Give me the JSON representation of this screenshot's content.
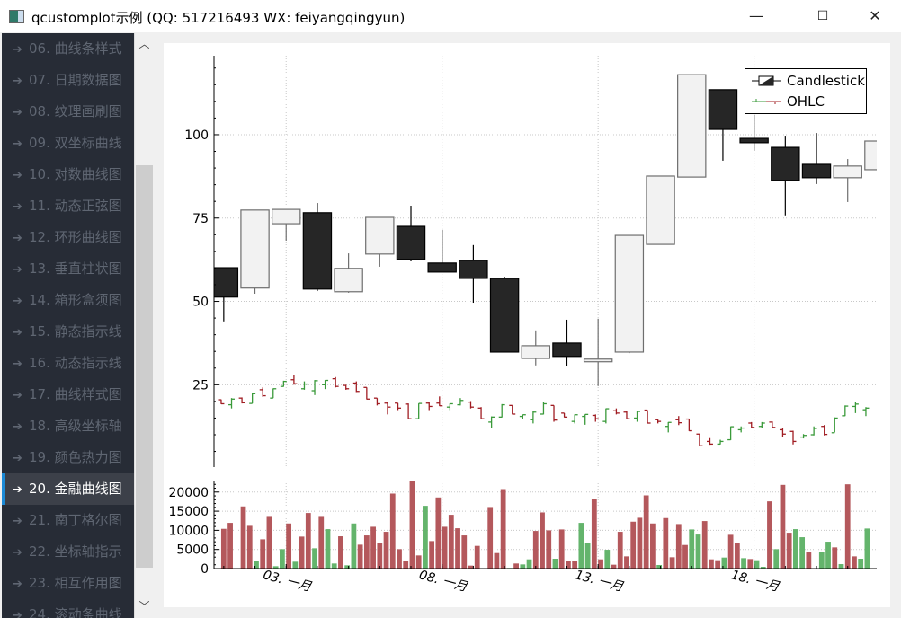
{
  "window": {
    "title": "qcustomplot示例 (QQ: 517216493 WX: feiyangqingyun)",
    "minimize": "—",
    "maximize": "☐",
    "close": "✕"
  },
  "sidebar": {
    "items": [
      {
        "label": "06. 曲线条样式"
      },
      {
        "label": "07. 日期数据图"
      },
      {
        "label": "08. 纹理画刷图"
      },
      {
        "label": "09. 双坐标曲线"
      },
      {
        "label": "10. 对数曲线图"
      },
      {
        "label": "11. 动态正弦图"
      },
      {
        "label": "12. 环形曲线图"
      },
      {
        "label": "13. 垂直柱状图"
      },
      {
        "label": "14. 箱形盒须图"
      },
      {
        "label": "15. 静态指示线"
      },
      {
        "label": "16. 动态指示线"
      },
      {
        "label": "17. 曲线样式图"
      },
      {
        "label": "18. 高级坐标轴"
      },
      {
        "label": "19. 颜色热力图"
      },
      {
        "label": "20. 金融曲线图"
      },
      {
        "label": "21. 南丁格尔图"
      },
      {
        "label": "22. 坐标轴指示"
      },
      {
        "label": "23. 相互作用图"
      },
      {
        "label": "24. 滚动条曲线"
      }
    ],
    "selected_index": 14,
    "arrow_icon": "arrow-right-icon"
  },
  "colors": {
    "accent": "#1b8ad6",
    "sidebar_bg": "#272c36",
    "candle_up": "#f2f2f2",
    "candle_down": "#262626",
    "ohlc_up": "#3a9a3a",
    "ohlc_down": "#a01c22",
    "volume_pos": "#64b46c",
    "volume_neg": "#b4585c"
  },
  "chart_data": [
    {
      "type": "candlestick",
      "legend": [
        {
          "label": "Candlestick"
        },
        {
          "label": "OHLC"
        }
      ],
      "legend_position": "top-right",
      "grid": true,
      "ylim": [
        0.3,
        123.7
      ],
      "xlim": [
        "12-31 16:30",
        "01-21 22:20"
      ],
      "yticks": [
        "25",
        "50",
        "75",
        "100"
      ],
      "candlestick": [
        [
          "01-01",
          60.1,
          60.1,
          44.0,
          51.3
        ],
        [
          "01-02",
          54.0,
          77.4,
          52.3,
          77.4
        ],
        [
          "01-03",
          73.3,
          77.6,
          68.2,
          77.6
        ],
        [
          "01-04",
          76.6,
          79.5,
          53.1,
          53.7
        ],
        [
          "01-05",
          52.9,
          64.4,
          52.6,
          59.9
        ],
        [
          "01-06",
          64.2,
          75.2,
          60.4,
          75.2
        ],
        [
          "01-07",
          72.5,
          78.7,
          62.0,
          62.6
        ],
        [
          "01-08",
          61.5,
          71.5,
          58.8,
          58.8
        ],
        [
          "01-09",
          62.3,
          66.9,
          49.6,
          56.9
        ],
        [
          "01-10",
          56.9,
          57.4,
          34.8,
          34.8
        ],
        [
          "01-11",
          32.9,
          41.3,
          30.8,
          36.7
        ],
        [
          "01-12",
          37.5,
          44.5,
          30.5,
          33.5
        ],
        [
          "01-13",
          31.9,
          44.8,
          24.6,
          32.7
        ],
        [
          "01-14",
          34.8,
          69.8,
          34.5,
          69.8
        ],
        [
          "01-15",
          67.1,
          87.6,
          67.0,
          87.6
        ],
        [
          "01-16",
          87.3,
          118.0,
          87.3,
          118.0
        ],
        [
          "01-17",
          113.5,
          113.5,
          92.2,
          101.6
        ],
        [
          "01-18",
          98.9,
          106.0,
          95.2,
          97.6
        ],
        [
          "01-19",
          96.2,
          99.7,
          75.8,
          86.3
        ],
        [
          "01-20",
          91.1,
          100.5,
          85.2,
          87.1
        ],
        [
          "01-21",
          87.1,
          92.7,
          79.8,
          90.6
        ],
        [
          "01-22",
          89.5,
          98.1,
          89.5,
          98.1
        ]
      ],
      "ohlc": [
        [
          "12-31 22:00",
          20.5,
          20.6,
          19.2,
          19.3
        ],
        [
          "01-01 06:00",
          19.0,
          21.0,
          17.9,
          20.7
        ],
        [
          "01-01 14:00",
          21.0,
          21.2,
          19.4,
          19.6
        ],
        [
          "01-01 22:00",
          19.4,
          22.4,
          19.4,
          22.3
        ],
        [
          "01-02 06:00",
          23.5,
          24.2,
          21.4,
          21.7
        ],
        [
          "01-02 14:00",
          21.0,
          23.9,
          21.0,
          23.8
        ],
        [
          "01-02 22:00",
          24.5,
          26.2,
          24.4,
          26.0
        ],
        [
          "01-03 06:00",
          26.5,
          28.0,
          25.0,
          25.3
        ],
        [
          "01-03 14:00",
          23.8,
          26.0,
          23.5,
          25.2
        ],
        [
          "01-03 22:00",
          23.2,
          26.4,
          21.9,
          26.2
        ],
        [
          "01-04 06:00",
          25.0,
          26.4,
          23.7,
          26.3
        ],
        [
          "01-04 14:00",
          26.8,
          27.3,
          24.2,
          24.5
        ],
        [
          "01-04 22:00",
          24.8,
          25.0,
          23.5,
          23.8
        ],
        [
          "01-05 06:00",
          25.5,
          26.0,
          22.8,
          23.0
        ],
        [
          "01-05 14:00",
          24.2,
          24.2,
          20.6,
          20.7
        ],
        [
          "01-05 22:00",
          21.0,
          21.0,
          18.8,
          19.3
        ],
        [
          "01-06 06:00",
          19.5,
          19.7,
          16.1,
          18.3
        ],
        [
          "01-06 14:00",
          19.5,
          19.5,
          17.4,
          18.0
        ],
        [
          "01-06 22:00",
          19.2,
          19.4,
          14.7,
          14.8
        ],
        [
          "01-07 06:00",
          14.8,
          19.4,
          14.7,
          19.4
        ],
        [
          "01-07 14:00",
          19.5,
          19.7,
          17.4,
          18.5
        ],
        [
          "01-07 22:00",
          19.5,
          21.5,
          18.6,
          18.7
        ],
        [
          "01-08 06:00",
          18.3,
          19.4,
          17.4,
          19.3
        ],
        [
          "01-08 14:00",
          19.0,
          21.0,
          18.8,
          20.3
        ],
        [
          "01-08 22:00",
          19.8,
          20.1,
          17.9,
          18.3
        ],
        [
          "01-09 06:00",
          18.0,
          18.3,
          14.7,
          14.8
        ],
        [
          "01-09 14:00",
          13.8,
          15.5,
          12.0,
          15.3
        ],
        [
          "01-09 22:00",
          15.3,
          19.2,
          15.2,
          19.0
        ],
        [
          "01-10 06:00",
          18.8,
          18.8,
          16.1,
          16.2
        ],
        [
          "01-10 14:00",
          15.5,
          16.0,
          14.7,
          16.0
        ],
        [
          "01-10 22:00",
          14.5,
          17.0,
          13.4,
          16.8
        ],
        [
          "01-11 06:00",
          16.2,
          19.7,
          16.1,
          19.3
        ],
        [
          "01-11 14:00",
          18.8,
          18.8,
          13.9,
          14.4
        ],
        [
          "01-11 22:00",
          16.5,
          16.5,
          15.2,
          15.3
        ],
        [
          "01-12 06:00",
          14.0,
          16.1,
          13.4,
          16.0
        ],
        [
          "01-12 14:00",
          15.5,
          16.1,
          13.0,
          16.1
        ],
        [
          "01-12 22:00",
          15.8,
          16.1,
          13.9,
          14.8
        ],
        [
          "01-13 06:00",
          14.0,
          17.9,
          13.4,
          17.8
        ],
        [
          "01-13 14:00",
          17.2,
          17.9,
          16.1,
          16.5
        ],
        [
          "01-13 22:00",
          16.8,
          17.0,
          14.7,
          14.8
        ],
        [
          "01-14 06:00",
          15.0,
          17.0,
          13.9,
          17.0
        ],
        [
          "01-14 14:00",
          17.4,
          17.4,
          13.4,
          13.5
        ],
        [
          "01-14 22:00",
          14.5,
          14.7,
          13.4,
          14.0
        ],
        [
          "01-15 06:00",
          12.5,
          13.8,
          10.7,
          13.7
        ],
        [
          "01-15 14:00",
          14.5,
          15.6,
          12.9,
          13.6
        ],
        [
          "01-15 22:00",
          14.7,
          14.7,
          11.1,
          11.2
        ],
        [
          "01-16 06:00",
          10.2,
          10.2,
          6.6,
          6.7
        ],
        [
          "01-16 14:00",
          8.0,
          9.0,
          7.0,
          7.2
        ],
        [
          "01-16 22:00",
          7.2,
          8.5,
          7.1,
          8.0
        ],
        [
          "01-17 06:00",
          8.5,
          12.5,
          8.4,
          12.4
        ],
        [
          "01-17 14:00",
          11.5,
          12.5,
          10.7,
          12.0
        ],
        [
          "01-17 22:00",
          13.5,
          13.8,
          12.0,
          12.2
        ],
        [
          "01-18 06:00",
          12.5,
          13.8,
          12.0,
          13.5
        ],
        [
          "01-18 14:00",
          13.8,
          14.0,
          12.0,
          12.2
        ],
        [
          "01-18 22:00",
          11.5,
          12.0,
          9.3,
          10.2
        ],
        [
          "01-19 06:00",
          11.0,
          11.2,
          7.1,
          8.0
        ],
        [
          "01-19 14:00",
          9.3,
          10.2,
          8.9,
          9.8
        ],
        [
          "01-19 22:00",
          10.0,
          12.5,
          9.8,
          11.9
        ],
        [
          "01-20 06:00",
          12.5,
          12.9,
          9.8,
          10.1
        ],
        [
          "01-20 14:00",
          10.6,
          15.2,
          10.7,
          15.0
        ],
        [
          "01-20 22:00",
          15.7,
          18.8,
          15.6,
          18.6
        ],
        [
          "01-21 06:00",
          18.5,
          19.7,
          16.5,
          19.2
        ],
        [
          "01-21 14:00",
          17.5,
          18.3,
          15.6,
          18.0
        ]
      ]
    },
    {
      "type": "bar",
      "ylim": [
        0,
        23000
      ],
      "yticks": [
        "0",
        "5000",
        "10000",
        "15000",
        "20000"
      ],
      "xticks": [
        [
          "01-03",
          "03. 一月"
        ],
        [
          "01-08",
          "08. 一月"
        ],
        [
          "01-13",
          "13. 一月"
        ],
        [
          "01-18",
          "18. 一月"
        ]
      ],
      "volume": [
        [
          "01-01 00:00",
          10390,
          "neg"
        ],
        [
          "01-01 05:00",
          11950,
          "neg"
        ],
        [
          "01-01 10:00",
          100,
          "neg"
        ],
        [
          "01-01 15:00",
          16250,
          "neg"
        ],
        [
          "01-01 20:00",
          11170,
          "neg"
        ],
        [
          "01-02 01:00",
          1950,
          "pos"
        ],
        [
          "01-02 06:00",
          7650,
          "neg"
        ],
        [
          "01-02 11:00",
          13510,
          "neg"
        ],
        [
          "01-02 16:00",
          620,
          "pos"
        ],
        [
          "01-02 21:00",
          5080,
          "pos"
        ],
        [
          "01-03 02:00",
          11790,
          "neg"
        ],
        [
          "01-03 07:00",
          1800,
          "pos"
        ],
        [
          "01-03 12:00",
          8360,
          "neg"
        ],
        [
          "01-03 17:00",
          14530,
          "neg"
        ],
        [
          "01-03 22:00",
          5310,
          "pos"
        ],
        [
          "01-04 03:00",
          13510,
          "neg"
        ],
        [
          "01-04 08:00",
          10310,
          "pos"
        ],
        [
          "01-04 13:00",
          1330,
          "pos"
        ],
        [
          "01-04 18:00",
          8440,
          "neg"
        ],
        [
          "01-04 23:00",
          860,
          "pos"
        ],
        [
          "01-05 04:00",
          11790,
          "pos"
        ],
        [
          "01-05 09:00",
          6250,
          "neg"
        ],
        [
          "01-05 14:00",
          8670,
          "neg"
        ],
        [
          "01-05 19:00",
          10930,
          "neg"
        ],
        [
          "01-06 00:00",
          6800,
          "neg"
        ],
        [
          "01-06 05:00",
          9610,
          "neg"
        ],
        [
          "01-06 10:00",
          19600,
          "neg"
        ],
        [
          "01-06 15:00",
          5080,
          "neg"
        ],
        [
          "01-06 20:00",
          2110,
          "neg"
        ],
        [
          "01-07 01:00",
          23270,
          "neg"
        ],
        [
          "01-07 06:00",
          3440,
          "neg"
        ],
        [
          "01-07 11:00",
          16400,
          "pos"
        ],
        [
          "01-07 16:00",
          7190,
          "neg"
        ],
        [
          "01-07 21:00",
          18590,
          "neg"
        ],
        [
          "01-08 02:00",
          10930,
          "neg"
        ],
        [
          "01-08 07:00",
          14060,
          "neg"
        ],
        [
          "01-08 12:00",
          10540,
          "neg"
        ],
        [
          "01-08 17:00",
          8670,
          "neg"
        ],
        [
          "01-08 22:00",
          780,
          "neg"
        ],
        [
          "01-09 03:00",
          5940,
          "neg"
        ],
        [
          "01-09 08:00",
          80,
          "pos"
        ],
        [
          "01-09 13:00",
          16090,
          "neg"
        ],
        [
          "01-09 18:00",
          4060,
          "neg"
        ],
        [
          "01-09 23:00",
          20770,
          "neg"
        ],
        [
          "01-10 04:00",
          150,
          "pos"
        ],
        [
          "01-10 09:00",
          1330,
          "neg"
        ],
        [
          "01-10 14:00",
          1090,
          "pos"
        ],
        [
          "01-10 19:00",
          2420,
          "pos"
        ],
        [
          "01-11 00:00",
          9840,
          "neg"
        ],
        [
          "01-11 05:00",
          14680,
          "neg"
        ],
        [
          "01-11 10:00",
          10000,
          "neg"
        ],
        [
          "01-11 15:00",
          2580,
          "pos"
        ],
        [
          "01-11 20:00",
          10230,
          "neg"
        ],
        [
          "01-12 01:00",
          2030,
          "neg"
        ],
        [
          "01-12 06:00",
          1950,
          "neg"
        ],
        [
          "01-12 11:00",
          11950,
          "pos"
        ],
        [
          "01-12 16:00",
          6640,
          "pos"
        ],
        [
          "01-12 21:00",
          18200,
          "neg"
        ],
        [
          "01-13 02:00",
          2420,
          "neg"
        ],
        [
          "01-13 07:00",
          4920,
          "pos"
        ],
        [
          "01-13 12:00",
          1020,
          "neg"
        ],
        [
          "01-13 17:00",
          9610,
          "neg"
        ],
        [
          "01-13 22:00",
          3200,
          "neg"
        ],
        [
          "01-14 03:00",
          12260,
          "neg"
        ],
        [
          "01-14 08:00",
          13280,
          "neg"
        ],
        [
          "01-14 13:00",
          19130,
          "neg"
        ],
        [
          "01-14 18:00",
          11790,
          "neg"
        ],
        [
          "01-14 23:00",
          940,
          "pos"
        ],
        [
          "01-15 04:00",
          13200,
          "neg"
        ],
        [
          "01-15 09:00",
          2970,
          "neg"
        ],
        [
          "01-15 14:00",
          11640,
          "neg"
        ],
        [
          "01-15 19:00",
          6170,
          "neg"
        ],
        [
          "01-16 00:00",
          10230,
          "pos"
        ],
        [
          "01-16 05:00",
          8900,
          "pos"
        ],
        [
          "01-16 10:00",
          12420,
          "neg"
        ],
        [
          "01-16 15:00",
          2420,
          "neg"
        ],
        [
          "01-16 20:00",
          2190,
          "neg"
        ],
        [
          "01-17 01:00",
          2890,
          "pos"
        ],
        [
          "01-17 06:00",
          8830,
          "neg"
        ],
        [
          "01-17 11:00",
          6640,
          "neg"
        ],
        [
          "01-17 16:00",
          2730,
          "pos"
        ],
        [
          "01-17 21:00",
          2500,
          "neg"
        ],
        [
          "01-18 02:00",
          2190,
          "pos"
        ],
        [
          "01-18 07:00",
          470,
          "pos"
        ],
        [
          "01-18 12:00",
          17570,
          "neg"
        ],
        [
          "01-18 17:00",
          5080,
          "pos"
        ],
        [
          "01-18 22:00",
          21870,
          "neg"
        ],
        [
          "01-19 03:00",
          9370,
          "neg"
        ],
        [
          "01-19 08:00",
          10310,
          "pos"
        ],
        [
          "01-19 13:00",
          8200,
          "pos"
        ],
        [
          "01-19 18:00",
          4220,
          "neg"
        ],
        [
          "01-19 23:00",
          50,
          "pos"
        ],
        [
          "01-20 04:00",
          4300,
          "pos"
        ],
        [
          "01-20 09:00",
          7030,
          "pos"
        ],
        [
          "01-20 14:00",
          5550,
          "neg"
        ],
        [
          "01-20 19:00",
          1170,
          "pos"
        ],
        [
          "01-21 00:00",
          22020,
          "neg"
        ],
        [
          "01-21 05:00",
          3200,
          "neg"
        ],
        [
          "01-21 10:00",
          2580,
          "pos"
        ],
        [
          "01-21 15:00",
          10470,
          "pos"
        ]
      ]
    }
  ]
}
